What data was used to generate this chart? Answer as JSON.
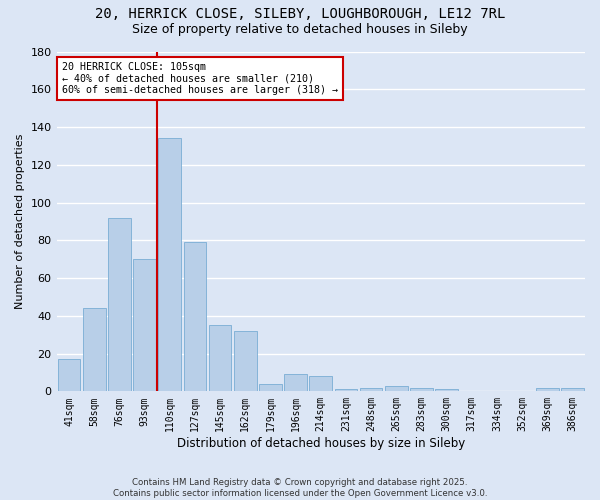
{
  "title1": "20, HERRICK CLOSE, SILEBY, LOUGHBOROUGH, LE12 7RL",
  "title2": "Size of property relative to detached houses in Sileby",
  "xlabel": "Distribution of detached houses by size in Sileby",
  "ylabel": "Number of detached properties",
  "categories": [
    "41sqm",
    "58sqm",
    "76sqm",
    "93sqm",
    "110sqm",
    "127sqm",
    "145sqm",
    "162sqm",
    "179sqm",
    "196sqm",
    "214sqm",
    "231sqm",
    "248sqm",
    "265sqm",
    "283sqm",
    "300sqm",
    "317sqm",
    "334sqm",
    "352sqm",
    "369sqm",
    "386sqm"
  ],
  "values": [
    17,
    44,
    92,
    70,
    134,
    79,
    35,
    32,
    4,
    9,
    8,
    1,
    2,
    3,
    2,
    1,
    0,
    0,
    0,
    2,
    2
  ],
  "bar_color": "#b8cfe8",
  "bar_edgecolor": "#7aadd4",
  "vline_x_index": 4,
  "vline_color": "#cc0000",
  "annotation_text": "20 HERRICK CLOSE: 105sqm\n← 40% of detached houses are smaller (210)\n60% of semi-detached houses are larger (318) →",
  "annotation_box_color": "#ffffff",
  "annotation_box_edgecolor": "#cc0000",
  "ylim": [
    0,
    180
  ],
  "yticks": [
    0,
    20,
    40,
    60,
    80,
    100,
    120,
    140,
    160,
    180
  ],
  "bg_color": "#dce6f5",
  "grid_color": "#ffffff",
  "footer": "Contains HM Land Registry data © Crown copyright and database right 2025.\nContains public sector information licensed under the Open Government Licence v3.0.",
  "title_fontsize": 10,
  "subtitle_fontsize": 9,
  "bar_width": 0.9
}
